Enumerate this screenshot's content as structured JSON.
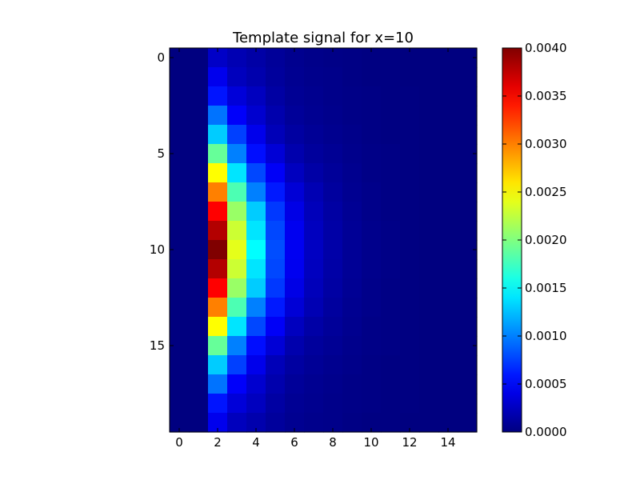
{
  "chart_data": {
    "type": "heatmap",
    "title": "Template signal for x=10",
    "xlabel": "",
    "ylabel": "",
    "colormap": "jet",
    "n_rows": 20,
    "n_cols": 16,
    "xlim": [
      -0.5,
      15.5
    ],
    "ylim": [
      19.5,
      -0.5
    ],
    "x_ticks": [
      0,
      2,
      4,
      6,
      8,
      10,
      12,
      14
    ],
    "y_ticks": [
      0,
      5,
      10,
      15
    ],
    "x_tick_labels": [
      "0",
      "2",
      "4",
      "6",
      "8",
      "10",
      "12",
      "14"
    ],
    "y_tick_labels": [
      "0",
      "5",
      "10",
      "15"
    ],
    "vmin": 0.0,
    "vmax": 0.004,
    "colorbar_ticks": [
      0.0,
      0.0005,
      0.001,
      0.0015,
      0.002,
      0.0025,
      0.003,
      0.0035,
      0.004
    ],
    "colorbar_tick_labels": [
      "0.0000",
      "0.0005",
      "0.0010",
      "0.0015",
      "0.0020",
      "0.0025",
      "0.0030",
      "0.0035",
      "0.0040"
    ],
    "grid": false,
    "peak_location": {
      "row": 10,
      "col": 2
    },
    "values": [
      [
        0,
        0,
        0.00028,
        0.0002,
        0.00015,
        0.0001,
        6e-05,
        4e-05,
        3e-05,
        2e-05,
        1e-05,
        1e-05,
        0,
        0,
        0,
        0
      ],
      [
        0,
        0,
        0.00043,
        0.00024,
        0.00018,
        0.00011,
        7e-05,
        5e-05,
        4e-05,
        2e-05,
        1e-05,
        1e-05,
        0,
        0,
        0,
        0
      ],
      [
        0,
        0,
        0.00058,
        0.00035,
        0.00025,
        0.00014,
        8e-05,
        6e-05,
        4e-05,
        3e-05,
        2e-05,
        1e-05,
        1e-05,
        0,
        0,
        0
      ],
      [
        0,
        0,
        0.00095,
        0.00048,
        0.00031,
        0.00018,
        0.0001,
        7e-05,
        5e-05,
        3e-05,
        2e-05,
        1e-05,
        1e-05,
        0,
        0,
        0
      ],
      [
        0,
        0,
        0.0013,
        0.00075,
        0.00042,
        0.00022,
        0.00013,
        9e-05,
        6e-05,
        4e-05,
        2e-05,
        1e-05,
        1e-05,
        0,
        0,
        0
      ],
      [
        0,
        0,
        0.0019,
        0.001,
        0.00055,
        0.00034,
        0.00018,
        0.00011,
        8e-05,
        5e-05,
        3e-05,
        2e-05,
        1e-05,
        0,
        0,
        0
      ],
      [
        0,
        0,
        0.0025,
        0.0014,
        0.00078,
        0.00047,
        0.00025,
        0.00015,
        0.0001,
        6e-05,
        3e-05,
        2e-05,
        1e-05,
        0,
        0,
        0
      ],
      [
        0,
        0,
        0.003,
        0.0018,
        0.001,
        0.0006,
        0.00034,
        0.0002,
        0.00012,
        7e-05,
        4e-05,
        2e-05,
        1e-05,
        0,
        0,
        0
      ],
      [
        0,
        0,
        0.0035,
        0.0021,
        0.0013,
        0.00072,
        0.0004,
        0.00023,
        0.00014,
        8e-05,
        4e-05,
        2e-05,
        1e-05,
        0,
        0,
        0
      ],
      [
        0,
        0,
        0.0038,
        0.0023,
        0.0014,
        0.00078,
        0.00044,
        0.00025,
        0.00015,
        9e-05,
        5e-05,
        3e-05,
        1e-05,
        0,
        0,
        0
      ],
      [
        0,
        0,
        0.004,
        0.0024,
        0.0015,
        0.0008,
        0.00045,
        0.00026,
        0.00016,
        9e-05,
        5e-05,
        3e-05,
        1e-05,
        0,
        0,
        0
      ],
      [
        0,
        0,
        0.0038,
        0.0023,
        0.0014,
        0.00078,
        0.00044,
        0.00025,
        0.00015,
        9e-05,
        5e-05,
        3e-05,
        1e-05,
        0,
        0,
        0
      ],
      [
        0,
        0,
        0.0035,
        0.0021,
        0.0013,
        0.00072,
        0.0004,
        0.00023,
        0.00014,
        8e-05,
        4e-05,
        2e-05,
        1e-05,
        0,
        0,
        0
      ],
      [
        0,
        0,
        0.003,
        0.0018,
        0.001,
        0.0006,
        0.00034,
        0.0002,
        0.00012,
        7e-05,
        4e-05,
        2e-05,
        1e-05,
        0,
        0,
        0
      ],
      [
        0,
        0,
        0.0025,
        0.0014,
        0.00078,
        0.00047,
        0.00025,
        0.00015,
        0.0001,
        6e-05,
        3e-05,
        2e-05,
        1e-05,
        0,
        0,
        0
      ],
      [
        0,
        0,
        0.0019,
        0.001,
        0.00055,
        0.00034,
        0.00018,
        0.00011,
        8e-05,
        5e-05,
        3e-05,
        2e-05,
        1e-05,
        0,
        0,
        0
      ],
      [
        0,
        0,
        0.0013,
        0.00075,
        0.00042,
        0.00022,
        0.00013,
        9e-05,
        6e-05,
        4e-05,
        2e-05,
        1e-05,
        1e-05,
        0,
        0,
        0
      ],
      [
        0,
        0,
        0.00095,
        0.00048,
        0.00031,
        0.00018,
        0.0001,
        7e-05,
        5e-05,
        3e-05,
        2e-05,
        1e-05,
        1e-05,
        0,
        0,
        0
      ],
      [
        0,
        0,
        0.00058,
        0.00035,
        0.00025,
        0.00014,
        8e-05,
        6e-05,
        4e-05,
        3e-05,
        2e-05,
        1e-05,
        1e-05,
        0,
        0,
        0
      ],
      [
        0,
        0,
        0.00043,
        0.00024,
        0.00018,
        0.00011,
        7e-05,
        5e-05,
        4e-05,
        2e-05,
        1e-05,
        1e-05,
        0,
        0,
        0,
        0
      ]
    ]
  }
}
